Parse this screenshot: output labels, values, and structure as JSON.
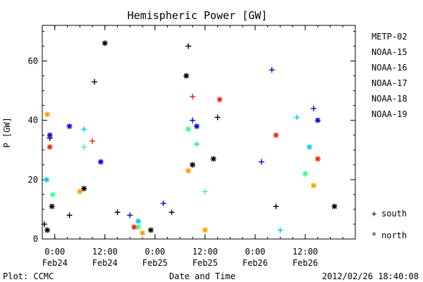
{
  "chart_data": {
    "type": "scatter",
    "title": "Hemispheric Power [GW]",
    "xlabel": "Date and Time",
    "ylabel": "P [GW]",
    "xlim": [
      "2012-02-23T21:00",
      "2012-02-27T00:00"
    ],
    "ylim": [
      0,
      72
    ],
    "yticks": [
      0,
      20,
      40,
      60
    ],
    "xticks": [
      {
        "at": "2012-02-24T00:00",
        "time": "0:00",
        "date": "Feb24"
      },
      {
        "at": "2012-02-24T12:00",
        "time": "12:00",
        "date": "Feb24"
      },
      {
        "at": "2012-02-25T00:00",
        "time": "0:00",
        "date": "Feb25"
      },
      {
        "at": "2012-02-25T12:00",
        "time": "12:00",
        "date": "Feb25"
      },
      {
        "at": "2012-02-26T00:00",
        "time": "0:00",
        "date": "Feb26"
      },
      {
        "at": "2012-02-26T12:00",
        "time": "12:00",
        "date": "Feb26"
      }
    ],
    "grid": false,
    "legend_position": "right",
    "series": [
      {
        "name": "METP-02",
        "color": "#000000",
        "points": [
          {
            "x": "2012-02-23T21:30",
            "y": 5,
            "h": "south"
          },
          {
            "x": "2012-02-23T22:12",
            "y": 3,
            "h": "north"
          },
          {
            "x": "2012-02-23T22:48",
            "y": 34,
            "h": "south"
          },
          {
            "x": "2012-02-23T23:18",
            "y": 11,
            "h": "north"
          },
          {
            "x": "2012-02-24T03:30",
            "y": 8,
            "h": "south"
          },
          {
            "x": "2012-02-24T07:00",
            "y": 17,
            "h": "north"
          },
          {
            "x": "2012-02-24T09:30",
            "y": 53,
            "h": "south"
          },
          {
            "x": "2012-02-24T12:00",
            "y": 66,
            "h": "north"
          },
          {
            "x": "2012-02-24T15:00",
            "y": 9,
            "h": "south"
          },
          {
            "x": "2012-02-24T23:00",
            "y": 3,
            "h": "north"
          },
          {
            "x": "2012-02-25T04:00",
            "y": 9,
            "h": "south"
          },
          {
            "x": "2012-02-25T07:30",
            "y": 55,
            "h": "north"
          },
          {
            "x": "2012-02-25T08:00",
            "y": 65,
            "h": "south"
          },
          {
            "x": "2012-02-25T09:00",
            "y": 25,
            "h": "north"
          },
          {
            "x": "2012-02-25T15:00",
            "y": 41,
            "h": "south"
          },
          {
            "x": "2012-02-25T14:00",
            "y": 27,
            "h": "north"
          },
          {
            "x": "2012-02-26T05:00",
            "y": 11,
            "h": "south"
          },
          {
            "x": "2012-02-26T19:00",
            "y": 11,
            "h": "north"
          }
        ]
      },
      {
        "name": "NOAA-15",
        "color": "#0000dd",
        "points": [
          {
            "x": "2012-02-23T22:48",
            "y": 35,
            "h": "north"
          },
          {
            "x": "2012-02-24T03:30",
            "y": 38,
            "h": "north"
          },
          {
            "x": "2012-02-24T11:00",
            "y": 26,
            "h": "north"
          },
          {
            "x": "2012-02-24T18:00",
            "y": 8,
            "h": "south"
          },
          {
            "x": "2012-02-25T02:00",
            "y": 12,
            "h": "south"
          },
          {
            "x": "2012-02-25T09:00",
            "y": 40,
            "h": "south"
          },
          {
            "x": "2012-02-25T10:00",
            "y": 38,
            "h": "north"
          },
          {
            "x": "2012-02-26T01:30",
            "y": 26,
            "h": "south"
          },
          {
            "x": "2012-02-26T04:00",
            "y": 57,
            "h": "south"
          },
          {
            "x": "2012-02-26T14:00",
            "y": 44,
            "h": "south"
          },
          {
            "x": "2012-02-26T15:00",
            "y": 40,
            "h": "north"
          }
        ]
      },
      {
        "name": "NOAA-16",
        "color": "#00c8e6",
        "points": [
          {
            "x": "2012-02-23T22:00",
            "y": 20,
            "h": "north"
          },
          {
            "x": "2012-02-24T07:00",
            "y": 37,
            "h": "south"
          },
          {
            "x": "2012-02-24T20:00",
            "y": 6,
            "h": "north"
          },
          {
            "x": "2012-02-25T10:00",
            "y": 32,
            "h": "south"
          },
          {
            "x": "2012-02-26T06:00",
            "y": 3,
            "h": "south"
          },
          {
            "x": "2012-02-26T13:00",
            "y": 31,
            "h": "north"
          },
          {
            "x": "2012-02-26T10:00",
            "y": 41,
            "h": "south"
          }
        ]
      },
      {
        "name": "NOAA-17",
        "color": "#33ff88",
        "points": [
          {
            "x": "2012-02-23T23:30",
            "y": 15,
            "h": "north"
          },
          {
            "x": "2012-02-24T07:00",
            "y": 31,
            "h": "south"
          },
          {
            "x": "2012-02-24T20:00",
            "y": 4,
            "h": "north"
          },
          {
            "x": "2012-02-25T08:00",
            "y": 37,
            "h": "north"
          },
          {
            "x": "2012-02-25T12:00",
            "y": 16,
            "h": "south"
          },
          {
            "x": "2012-02-26T12:00",
            "y": 22,
            "h": "north"
          }
        ]
      },
      {
        "name": "NOAA-18",
        "color": "#ff9900",
        "points": [
          {
            "x": "2012-02-23T22:12",
            "y": 42,
            "h": "north"
          },
          {
            "x": "2012-02-24T06:00",
            "y": 16,
            "h": "north"
          },
          {
            "x": "2012-02-24T21:00",
            "y": 2,
            "h": "north"
          },
          {
            "x": "2012-02-25T08:00",
            "y": 23,
            "h": "north"
          },
          {
            "x": "2012-02-25T12:00",
            "y": 3,
            "h": "north"
          },
          {
            "x": "2012-02-26T14:00",
            "y": 18,
            "h": "north"
          }
        ]
      },
      {
        "name": "NOAA-19",
        "color": "#ee2200",
        "points": [
          {
            "x": "2012-02-23T22:48",
            "y": 31,
            "h": "north"
          },
          {
            "x": "2012-02-24T09:00",
            "y": 33,
            "h": "south"
          },
          {
            "x": "2012-02-24T19:00",
            "y": 4,
            "h": "north"
          },
          {
            "x": "2012-02-25T09:00",
            "y": 48,
            "h": "south"
          },
          {
            "x": "2012-02-25T15:30",
            "y": 47,
            "h": "north"
          },
          {
            "x": "2012-02-26T05:00",
            "y": 35,
            "h": "north"
          },
          {
            "x": "2012-02-26T15:00",
            "y": 27,
            "h": "north"
          }
        ]
      }
    ],
    "legend_markers": [
      {
        "symbol": "+",
        "label": "south"
      },
      {
        "symbol": "*",
        "label": "north"
      }
    ]
  },
  "footer": {
    "left": "Plot: CCMC",
    "right": "2012/02/26 18:40:08"
  }
}
